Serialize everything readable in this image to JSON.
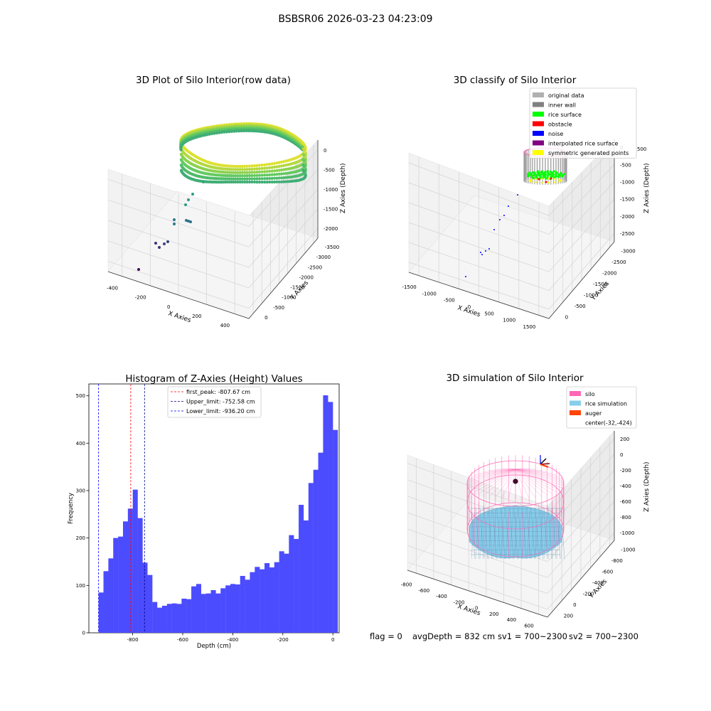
{
  "suptitle": "BSBSR06 2026-03-23 04:23:09",
  "footer": {
    "flag": "flag = 0",
    "avg_depth": "avgDepth = 832 cm",
    "sv1": "sv1 = 700~2300",
    "sv2": "sv2 = 700~2300"
  },
  "chart_data": [
    {
      "type": "scatter",
      "title": "3D Plot of Silo Interior(row data)",
      "xlabel": "X Axies",
      "ylabel": "Y Axies",
      "zlabel": "Z Axies (Depth)",
      "x_ticks": [
        "-400",
        "-200",
        "0",
        "200",
        "400"
      ],
      "y_ticks": [
        "0",
        "-500",
        "-1000",
        "-1500",
        "-2000",
        "-2500",
        "-3000",
        "-3500"
      ],
      "z_ticks": [
        "0",
        "-500",
        "-1000",
        "-1500",
        "-2000"
      ],
      "colormap": "viridis"
    },
    {
      "type": "scatter",
      "title": "3D classify of Silo Interior",
      "xlabel": "X Axies",
      "ylabel": "Y Axies",
      "zlabel": "Z Axies (Depth)",
      "x_ticks": [
        "-1500",
        "-1000",
        "-500",
        "0",
        "500",
        "1000",
        "1500"
      ],
      "y_ticks": [
        "0",
        "-500",
        "-1000",
        "-1500",
        "-2000",
        "-2500",
        "-3000"
      ],
      "z_ticks": [
        "0",
        "-500",
        "-1000",
        "-1500",
        "-2000",
        "-2500"
      ],
      "z_top_tick": "500",
      "legend_position": "top-right",
      "legend": [
        {
          "label": "original data",
          "color": "#b0b0b0"
        },
        {
          "label": "inner wall",
          "color": "#808080"
        },
        {
          "label": "rice surface",
          "color": "#00ff00"
        },
        {
          "label": "obstacle",
          "color": "#ff0000"
        },
        {
          "label": "noise",
          "color": "#0000ff"
        },
        {
          "label": "interpolated rice surface",
          "color": "#800080"
        },
        {
          "label": "symmetric generated points",
          "color": "#ffff00"
        }
      ]
    },
    {
      "type": "bar",
      "title": "Histogram of Z-Axies (Height) Values",
      "xlabel": "Depth (cm)",
      "ylabel": "Frequency",
      "xlim": [
        -975,
        25
      ],
      "ylim": [
        0,
        525
      ],
      "x_ticks": [
        -800,
        -600,
        -400,
        -200,
        0
      ],
      "y_ticks": [
        0,
        100,
        200,
        300,
        400,
        500
      ],
      "bar_color": "#4c4cff",
      "bin_start": -936.2,
      "bin_width": 19.5,
      "values": [
        85,
        130,
        157,
        200,
        203,
        235,
        262,
        302,
        242,
        148,
        122,
        65,
        53,
        57,
        61,
        62,
        61,
        72,
        71,
        98,
        103,
        82,
        83,
        90,
        83,
        94,
        100,
        103,
        102,
        120,
        112,
        128,
        139,
        134,
        147,
        138,
        149,
        172,
        167,
        206,
        198,
        270,
        237,
        316,
        344,
        380,
        501,
        487,
        428
      ],
      "vlines": [
        {
          "label": "first_peak: -807.67 cm",
          "x": -807.67,
          "color": "#ff0000"
        },
        {
          "label": "Upper_limit: -752.58 cm",
          "x": -752.58,
          "color": "#00008b"
        },
        {
          "label": "Lower_limit: -936.20 cm",
          "x": -936.2,
          "color": "#0000ff"
        }
      ],
      "legend_position": "top-center"
    },
    {
      "type": "scatter",
      "title": "3D simulation of Silo Interior",
      "xlabel": "X Axies",
      "ylabel": "Y Axies",
      "zlabel": "Z Axies (Depth)",
      "x_ticks": [
        "-800",
        "-600",
        "-400",
        "-200",
        "0",
        "200",
        "400",
        "600"
      ],
      "y_ticks": [
        "200",
        "0",
        "-200",
        "-400",
        "-600",
        "-800",
        "-1000"
      ],
      "z_ticks": [
        "200",
        "0",
        "-200",
        "-400",
        "-600",
        "-800",
        "-1000"
      ],
      "legend_position": "top-right",
      "legend": [
        {
          "label": "silo",
          "color": "#ff69b4"
        },
        {
          "label": "rice simulation",
          "color": "#87ceeb"
        },
        {
          "label": "auger",
          "color": "#ff4500"
        },
        {
          "label": "center(-32,-424)",
          "color": ""
        }
      ]
    }
  ]
}
